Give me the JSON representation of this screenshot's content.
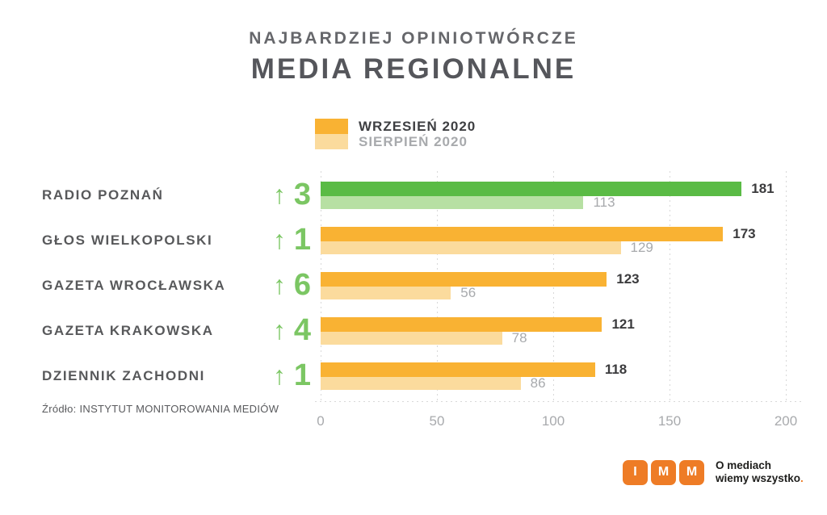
{
  "title": {
    "line1": "NAJBARDZIEJ OPINIOTWÓRCZE",
    "line2": "MEDIA REGIONALNE"
  },
  "legend": [
    {
      "label": "WRZESIEŃ 2020",
      "color": "#F9B233",
      "text_color": "#3E3F42"
    },
    {
      "label": "SIERPIEŃ 2020",
      "color": "#FBDB9D",
      "text_color": "#A8AAAD"
    }
  ],
  "chart_data": {
    "type": "bar",
    "orientation": "horizontal",
    "title": "NAJBARDZIEJ OPINIOTWÓRCZE MEDIA REGIONALNE",
    "xlabel": "",
    "ylabel": "",
    "xlim": [
      0,
      200
    ],
    "xticks": [
      0,
      50,
      100,
      150,
      200
    ],
    "grid": "dotted-vertical",
    "legend_position": "top",
    "categories": [
      "RADIO POZNAŃ",
      "GŁOS WIELKOPOLSKI",
      "GAZETA WROCŁAWSKA",
      "GAZETA KRAKOWSKA",
      "DZIENNIK ZACHODNI"
    ],
    "rank_changes": [
      {
        "arrow": "↑",
        "value": 3
      },
      {
        "arrow": "↑",
        "value": 1
      },
      {
        "arrow": "↑",
        "value": 6
      },
      {
        "arrow": "↑",
        "value": 4
      },
      {
        "arrow": "↑",
        "value": 1
      }
    ],
    "series": [
      {
        "name": "WRZESIEŃ 2020",
        "values": [
          181,
          173,
          123,
          121,
          118
        ]
      },
      {
        "name": "SIERPIEŃ 2020",
        "values": [
          113,
          129,
          56,
          78,
          86
        ]
      }
    ],
    "bar_colors": [
      {
        "main": "#5ABB45",
        "light": "#B7E0A3"
      },
      {
        "main": "#F9B233",
        "light": "#FBDB9D"
      },
      {
        "main": "#F9B233",
        "light": "#FBDB9D"
      },
      {
        "main": "#F9B233",
        "light": "#FBDB9D"
      },
      {
        "main": "#F9B233",
        "light": "#FBDB9D"
      }
    ]
  },
  "colors": {
    "rank_green": "#7BC663",
    "value_dark": "#3B3B3D",
    "muted_gray": "#A8AAAD",
    "gridline": "#D8D8D8",
    "logo_orange": "#EE7C26"
  },
  "source": "Źródło: INSTYTUT MONITOROWANIA MEDIÓW",
  "logo": {
    "letters": [
      "I",
      "M",
      "M"
    ],
    "tagline_line1": "O mediach",
    "tagline_line2": "wiemy wszystko",
    "period": "."
  }
}
